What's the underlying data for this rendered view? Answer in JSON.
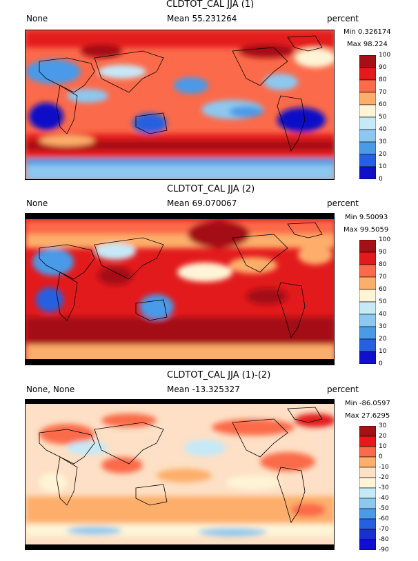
{
  "panels": [
    {
      "title": "CLDTOT_CAL JJA (1)",
      "left_label": "None",
      "mean_label": "Mean 55.231264",
      "units": "percent",
      "min_label": "Min 0.326174",
      "max_label": "Max 98.224",
      "levels": [
        "100",
        "90",
        "80",
        "70",
        "60",
        "50",
        "40",
        "30",
        "20",
        "10",
        "0"
      ],
      "colors": [
        "#a50f15",
        "#e31a1c",
        "#fb6a4a",
        "#fdae6b",
        "#fff5d6",
        "#c6e9f7",
        "#8cc8f0",
        "#4a9ae8",
        "#2660e0",
        "#1010c8"
      ]
    },
    {
      "title": "CLDTOT_CAL JJA (2)",
      "left_label": "None",
      "mean_label": "Mean 69.070067",
      "units": "percent",
      "min_label": "Min 9.50093",
      "max_label": "Max 99.5059",
      "levels": [
        "100",
        "90",
        "80",
        "70",
        "60",
        "50",
        "40",
        "30",
        "20",
        "10",
        "0"
      ],
      "colors": [
        "#a50f15",
        "#e31a1c",
        "#fb6a4a",
        "#fdae6b",
        "#fff5d6",
        "#c6e9f7",
        "#8cc8f0",
        "#4a9ae8",
        "#2660e0",
        "#1010c8"
      ]
    },
    {
      "title": "CLDTOT_CAL JJA (1)-(2)",
      "left_label": "None, None",
      "mean_label": "Mean -13.325327",
      "units": "percent",
      "min_label": "Min -86.0597",
      "max_label": "Max 27.6295",
      "levels": [
        "30",
        "20",
        "10",
        "0",
        "-10",
        "-20",
        "-30",
        "-40",
        "-50",
        "-60",
        "-70",
        "-80",
        "-90"
      ],
      "colors": [
        "#a50f15",
        "#e31a1c",
        "#fb6a4a",
        "#fdae6b",
        "#fde0c5",
        "#fff5d6",
        "#c6e9f7",
        "#8cc8f0",
        "#4a9ae8",
        "#2660e0",
        "#1830d0",
        "#1010c8"
      ]
    }
  ],
  "chart_data": {
    "type": "heatmap",
    "description_units": "percent",
    "panels": [
      {
        "title": "CLDTOT_CAL JJA (1)",
        "mean": 55.231264,
        "min": 0.326174,
        "max": 98.224,
        "colorbar_range": [
          0,
          100
        ],
        "colorbar_step": 10
      },
      {
        "title": "CLDTOT_CAL JJA (2)",
        "mean": 69.070067,
        "min": 9.50093,
        "max": 99.5059,
        "colorbar_range": [
          0,
          100
        ],
        "colorbar_step": 10
      },
      {
        "title": "CLDTOT_CAL JJA (1)-(2)",
        "mean": -13.325327,
        "min": -86.0597,
        "max": 27.6295,
        "colorbar_range": [
          -90,
          30
        ],
        "colorbar_step": 10
      }
    ]
  }
}
